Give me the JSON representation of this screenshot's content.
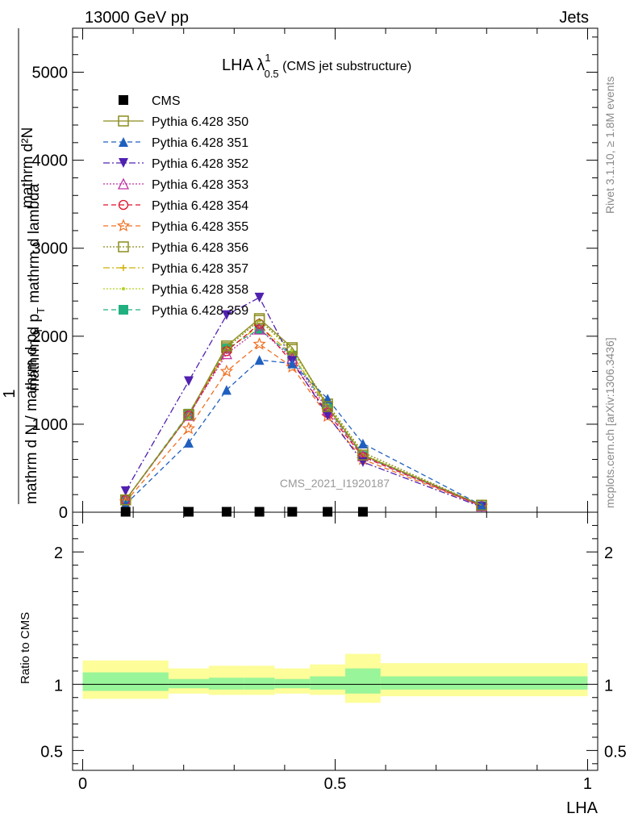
{
  "header": {
    "left": "13000 GeV pp",
    "right": "Jets"
  },
  "side_labels": {
    "rivet": "Rivet 3.1.10, ≥ 1.8M events",
    "mcplots": "mcplots.cern.ch [arXiv:1306.3436]"
  },
  "watermark": "CMS_2021_I1920187",
  "chart_data": [
    {
      "type": "line",
      "panel": "main",
      "title_main": "LHA λ",
      "title_sup": "1",
      "title_sub": "0.5",
      "title_rest": " (CMS jet substructure)",
      "ylabel_numer": "mathrm d²N",
      "ylabel_numer_sub": "mathrm d p",
      "ylabel_numer_sub2": "T",
      "ylabel_numer_tail": " mathrm d lambda",
      "ylabel_denom": "mathrm d N / mathrm d p",
      "ylabel_denom_sub": "T",
      "ylabel_one": "1",
      "xlim": [
        -0.02,
        1.02
      ],
      "ylim": [
        0,
        5500
      ],
      "yticks": [
        0,
        1000,
        2000,
        3000,
        4000,
        5000
      ],
      "ytick_labels": [
        "0",
        "1000",
        "2000",
        "3000",
        "4000",
        "5000"
      ],
      "x": [
        0.085,
        0.21,
        0.285,
        0.35,
        0.415,
        0.485,
        0.555,
        0.79
      ],
      "series": [
        {
          "name": "CMS",
          "color": "#000000",
          "dash": "",
          "marker": "square-filled",
          "values": [
            5,
            5,
            5,
            5,
            5,
            5,
            5,
            null
          ]
        },
        {
          "name": "Pythia 6.428 350",
          "color": "#8c8c1e",
          "dash": "",
          "marker": "square-open",
          "values": [
            140,
            1110,
            1890,
            2200,
            1870,
            1200,
            650,
            80
          ]
        },
        {
          "name": "Pythia 6.428 351",
          "color": "#1f5fbf",
          "dash": "6,4",
          "marker": "triangle-up-filled",
          "values": [
            90,
            790,
            1390,
            1730,
            1690,
            1290,
            780,
            80
          ]
        },
        {
          "name": "Pythia 6.428 352",
          "color": "#5020b0",
          "dash": "8,3,2,3",
          "marker": "triangle-down-filled",
          "values": [
            240,
            1490,
            2240,
            2440,
            1720,
            1100,
            570,
            60
          ]
        },
        {
          "name": "Pythia 6.428 353",
          "color": "#c030a0",
          "dash": "2,2",
          "marker": "triangle-up-open",
          "values": [
            140,
            1100,
            1800,
            2080,
            1750,
            1160,
            640,
            70
          ]
        },
        {
          "name": "Pythia 6.428 354",
          "color": "#e0102a",
          "dash": "6,4",
          "marker": "circle-open",
          "values": [
            140,
            1100,
            1830,
            2140,
            1700,
            1130,
            630,
            70
          ]
        },
        {
          "name": "Pythia 6.428 355",
          "color": "#f07020",
          "dash": "6,4",
          "marker": "star-open",
          "values": [
            120,
            950,
            1600,
            1910,
            1650,
            1090,
            600,
            70
          ]
        },
        {
          "name": "Pythia 6.428 356",
          "color": "#8c8c1e",
          "dash": "2,2",
          "marker": "square-open",
          "values": [
            140,
            1110,
            1870,
            2180,
            1850,
            1230,
            680,
            80
          ]
        },
        {
          "name": "Pythia 6.428 357",
          "color": "#d0b000",
          "dash": "8,3,2,3",
          "marker": "plus",
          "values": [
            140,
            1100,
            1840,
            2120,
            1790,
            1190,
            650,
            75
          ]
        },
        {
          "name": "Pythia 6.428 358",
          "color": "#b0d020",
          "dash": "2,2",
          "marker": "dot",
          "values": [
            140,
            1110,
            1870,
            2180,
            1830,
            1220,
            660,
            75
          ]
        },
        {
          "name": "Pythia 6.428 359",
          "color": "#20b080",
          "dash": "6,4",
          "marker": "square-filled",
          "values": [
            140,
            1120,
            1860,
            2080,
            1780,
            1180,
            640,
            70
          ]
        }
      ]
    },
    {
      "type": "area",
      "panel": "ratio",
      "ylabel": "Ratio to CMS",
      "xlabel": "LHA",
      "xlim": [
        -0.02,
        1.02
      ],
      "ylim": [
        0.35,
        2.3
      ],
      "yticks": [
        0.5,
        1,
        2
      ],
      "ytick_labels": [
        "0.5",
        "1",
        "2"
      ],
      "xticks": [
        0,
        0.5,
        1
      ],
      "xtick_labels": [
        "0",
        "0.5",
        "1"
      ],
      "reference_line": 1,
      "bands": [
        {
          "x0": 0.0,
          "x1": 0.17,
          "outer": [
            0.89,
            1.18
          ],
          "inner": [
            0.95,
            1.09
          ]
        },
        {
          "x0": 0.17,
          "x1": 0.25,
          "outer": [
            0.93,
            1.12
          ],
          "inner": [
            0.97,
            1.04
          ]
        },
        {
          "x0": 0.25,
          "x1": 0.32,
          "outer": [
            0.92,
            1.14
          ],
          "inner": [
            0.96,
            1.05
          ]
        },
        {
          "x0": 0.32,
          "x1": 0.38,
          "outer": [
            0.92,
            1.14
          ],
          "inner": [
            0.96,
            1.05
          ]
        },
        {
          "x0": 0.38,
          "x1": 0.45,
          "outer": [
            0.93,
            1.12
          ],
          "inner": [
            0.97,
            1.04
          ]
        },
        {
          "x0": 0.45,
          "x1": 0.52,
          "outer": [
            0.92,
            1.15
          ],
          "inner": [
            0.96,
            1.06
          ]
        },
        {
          "x0": 0.52,
          "x1": 0.59,
          "outer": [
            0.86,
            1.23
          ],
          "inner": [
            0.93,
            1.12
          ]
        },
        {
          "x0": 0.59,
          "x1": 1.0,
          "outer": [
            0.91,
            1.16
          ],
          "inner": [
            0.96,
            1.06
          ]
        }
      ],
      "colors": {
        "outer": "#fdfd99",
        "inner": "#99f599"
      }
    }
  ]
}
